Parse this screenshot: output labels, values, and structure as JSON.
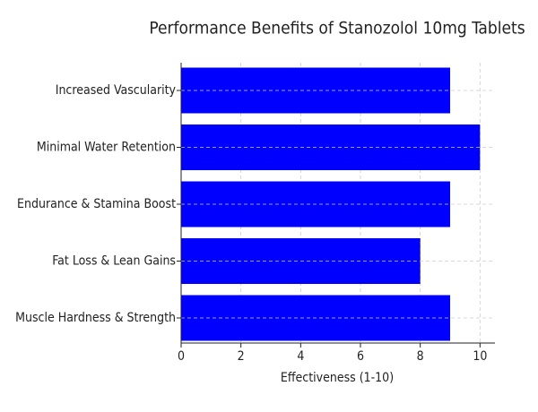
{
  "chart_data": {
    "type": "barh",
    "title": "Performance Benefits of Stanozolol 10mg Tablets",
    "categories": [
      "Increased Vascularity",
      "Minimal Water Retention",
      "Endurance & Stamina Boost",
      "Fat Loss & Lean Gains",
      "Muscle Hardness & Strength"
    ],
    "values": [
      9,
      10,
      9,
      8,
      9
    ],
    "color": "#0000ff",
    "xlabel": "Effectiveness (1-10)",
    "xlim": [
      0,
      10.5
    ],
    "xticks": [
      0,
      2,
      4,
      6,
      8,
      10
    ],
    "grid": true
  }
}
